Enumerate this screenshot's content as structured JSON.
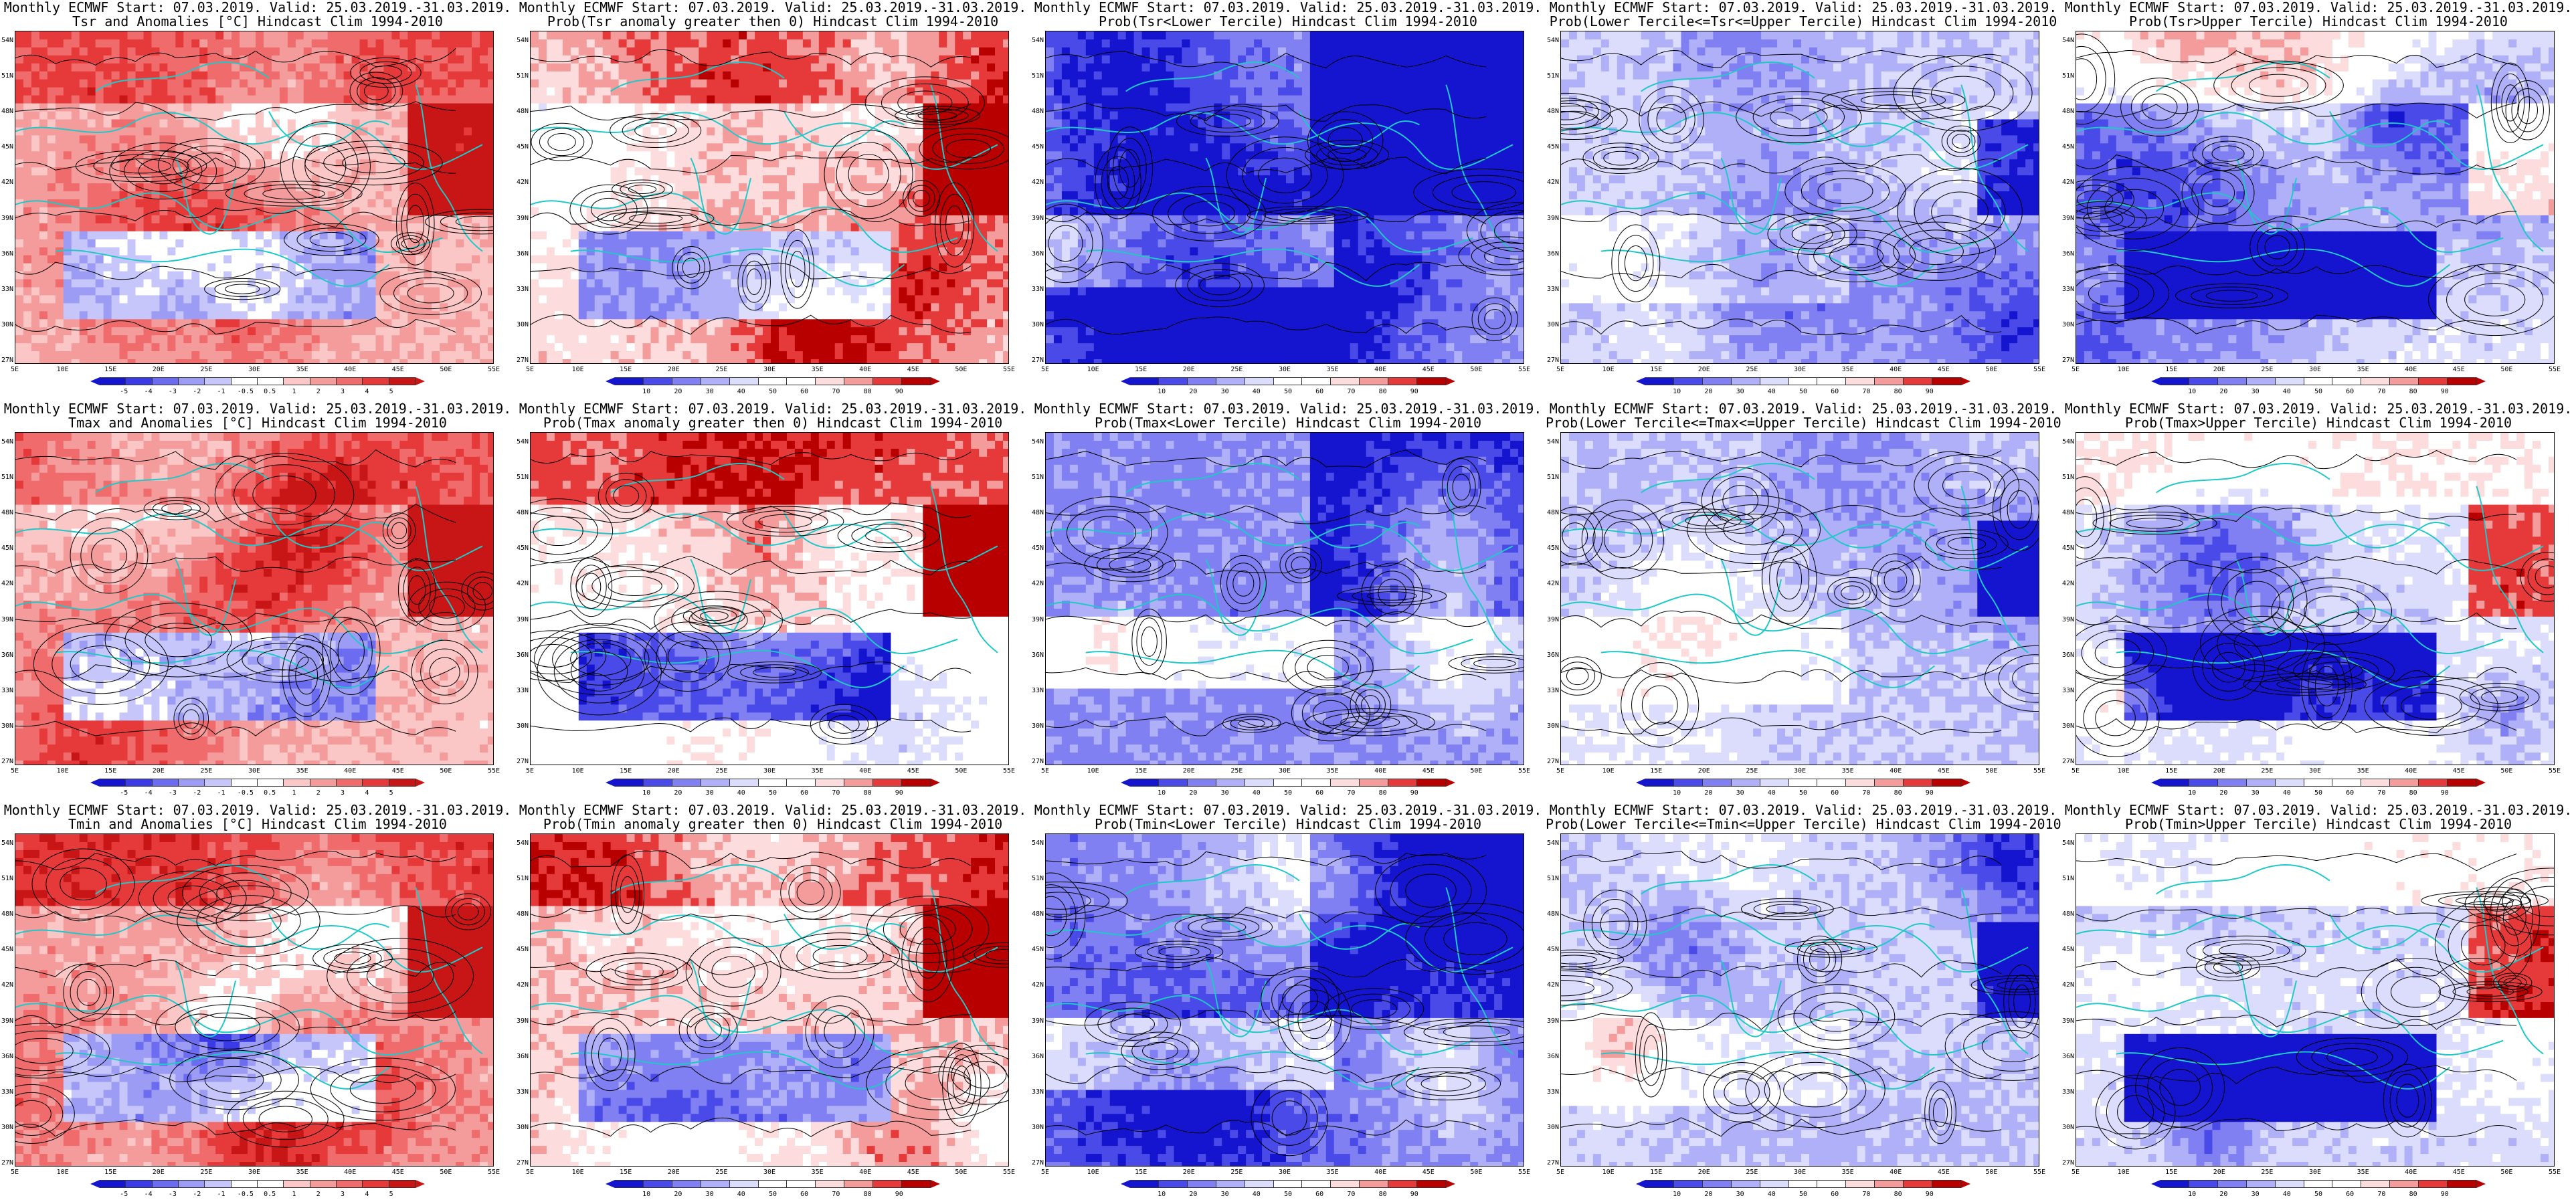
{
  "map_axes": {
    "lat_ticks": [
      "54N",
      "51N",
      "48N",
      "45N",
      "42N",
      "39N",
      "36N",
      "33N",
      "30N",
      "27N"
    ],
    "lon_ticks": [
      "5E",
      "10E",
      "15E",
      "20E",
      "25E",
      "30E",
      "35E",
      "40E",
      "45E",
      "50E",
      "55E"
    ]
  },
  "colors": {
    "anomaly": [
      "#1515d0",
      "#3a3ae6",
      "#6c6cf0",
      "#9c9cf4",
      "#c6c6fa",
      "#ffffff",
      "#ffffff",
      "#fbc6c6",
      "#f49c9c",
      "#f06c6c",
      "#e63a3a",
      "#c81515"
    ],
    "prob": [
      "#1515d0",
      "#4a4ae8",
      "#8080f2",
      "#b0b0f8",
      "#dcdcfc",
      "#ffffff",
      "#ffffff",
      "#fcdcdc",
      "#f49c9c",
      "#e63a3a",
      "#b80000"
    ],
    "coast": "#20c8c8",
    "contour": "#000000"
  },
  "colorbars": {
    "anomaly_labels": [
      "-5",
      "-4",
      "-3",
      "-2",
      "-1",
      "-0.5",
      "0.5",
      "1",
      "2",
      "3",
      "4",
      "5"
    ],
    "prob_labels": [
      "10",
      "20",
      "30",
      "40",
      "50",
      "60",
      "70",
      "80",
      "90"
    ]
  },
  "panels": [
    {
      "line1": "Monthly ECMWF Start: 07.03.2019. Valid: 25.03.2019.-31.03.2019.",
      "line2": "Tsr and Anomalies [°C] Hindcast Clim 1994-2010",
      "kind": "anom",
      "sub": "Tsr",
      "seed": 11,
      "bias": 0.35
    },
    {
      "line1": "Monthly ECMWF Start: 07.03.2019. Valid: 25.03.2019.-31.03.2019.",
      "line2": "Prob(Tsr anomaly greater then 0) Hindcast Clim 1994-2010",
      "kind": "prob",
      "sub": "Tsr>0",
      "seed": 12,
      "bias": 0.4
    },
    {
      "line1": "Monthly ECMWF Start: 07.03.2019. Valid: 25.03.2019.-31.03.2019.",
      "line2": "Prob(Tsr<Lower Tercile) Hindcast Clim 1994-2010",
      "kind": "prob",
      "sub": "lower",
      "seed": 13,
      "bias": -0.55
    },
    {
      "line1": "Monthly ECMWF Start: 07.03.2019. Valid: 25.03.2019.-31.03.2019.",
      "line2": "Prob(Lower Tercile<=Tsr<=Upper Tercile) Hindcast Clim 1994-2010",
      "kind": "prob",
      "sub": "middle",
      "seed": 14,
      "bias": -0.3
    },
    {
      "line1": "Monthly ECMWF Start: 07.03.2019. Valid: 25.03.2019.-31.03.2019.",
      "line2": "Prob(Tsr>Upper Tercile) Hindcast Clim 1994-2010",
      "kind": "prob",
      "sub": "upper",
      "seed": 15,
      "bias": -0.15
    },
    {
      "line1": "Monthly ECMWF Start: 07.03.2019. Valid: 25.03.2019.-31.03.2019.",
      "line2": "Tmax and Anomalies [°C] Hindcast Clim 1994-2010",
      "kind": "anom",
      "sub": "Tmax",
      "seed": 21,
      "bias": 0.3
    },
    {
      "line1": "Monthly ECMWF Start: 07.03.2019. Valid: 25.03.2019.-31.03.2019.",
      "line2": "Prob(Tmax anomaly greater then 0) Hindcast Clim 1994-2010",
      "kind": "prob",
      "sub": "Tmax>0",
      "seed": 22,
      "bias": 0.35
    },
    {
      "line1": "Monthly ECMWF Start: 07.03.2019. Valid: 25.03.2019.-31.03.2019.",
      "line2": "Prob(Tmax<Lower Tercile) Hindcast Clim 1994-2010",
      "kind": "prob",
      "sub": "lower",
      "seed": 23,
      "bias": -0.55
    },
    {
      "line1": "Monthly ECMWF Start: 07.03.2019. Valid: 25.03.2019.-31.03.2019.",
      "line2": "Prob(Lower Tercile<=Tmax<=Upper Tercile) Hindcast Clim 1994-2010",
      "kind": "prob",
      "sub": "middle",
      "seed": 24,
      "bias": -0.3
    },
    {
      "line1": "Monthly ECMWF Start: 07.03.2019. Valid: 25.03.2019.-31.03.2019.",
      "line2": "Prob(Tmax>Upper Tercile) Hindcast Clim 1994-2010",
      "kind": "prob",
      "sub": "upper",
      "seed": 25,
      "bias": -0.15
    },
    {
      "line1": "Monthly ECMWF Start: 07.03.2019. Valid: 25.03.2019.-31.03.2019.",
      "line2": "Tmin and Anomalies [°C] Hindcast Clim 1994-2010",
      "kind": "anom",
      "sub": "Tmin",
      "seed": 31,
      "bias": 0.45
    },
    {
      "line1": "Monthly ECMWF Start: 07.03.2019. Valid: 25.03.2019.-31.03.2019.",
      "line2": "Prob(Tmin anomaly greater then 0) Hindcast Clim 1994-2010",
      "kind": "prob",
      "sub": "Tmin>0",
      "seed": 32,
      "bias": 0.45
    },
    {
      "line1": "Monthly ECMWF Start: 07.03.2019. Valid: 25.03.2019.-31.03.2019.",
      "line2": "Prob(Tmin<Lower Tercile) Hindcast Clim 1994-2010",
      "kind": "prob",
      "sub": "lower",
      "seed": 33,
      "bias": -0.6
    },
    {
      "line1": "Monthly ECMWF Start: 07.03.2019. Valid: 25.03.2019.-31.03.2019.",
      "line2": "Prob(Lower Tercile<=Tmin<=Upper Tercile) Hindcast Clim 1994-2010",
      "kind": "prob",
      "sub": "middle",
      "seed": 34,
      "bias": -0.35
    },
    {
      "line1": "Monthly ECMWF Start: 07.03.2019. Valid: 25.03.2019.-31.03.2019.",
      "line2": "Prob(Tmin>Upper Tercile) Hindcast Clim 1994-2010",
      "kind": "prob",
      "sub": "upper",
      "seed": 35,
      "bias": -0.2
    }
  ]
}
